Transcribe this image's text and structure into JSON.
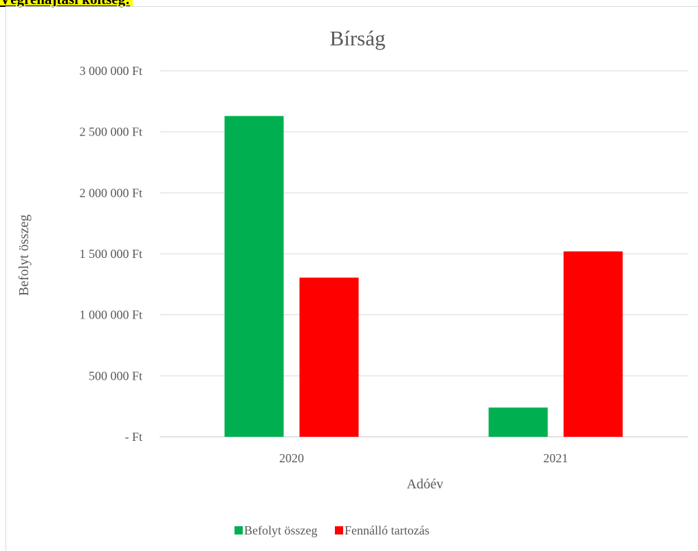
{
  "heading": "Végrehajtási költség:",
  "chart_data": {
    "type": "bar",
    "title": "Bírság",
    "xlabel": "Adóév",
    "ylabel": "Befolyt összeg",
    "categories": [
      "2020",
      "2021"
    ],
    "series": [
      {
        "name": "Befolyt összeg",
        "color": "#00b050",
        "values": [
          2630000,
          240000
        ]
      },
      {
        "name": "Fennálló tartozás",
        "color": "#ff0000",
        "values": [
          1305000,
          1520000
        ]
      }
    ],
    "ylim": [
      0,
      3000000
    ],
    "yticks": [
      0,
      500000,
      1000000,
      1500000,
      2000000,
      2500000,
      3000000
    ],
    "ytick_labels": [
      "-   Ft",
      "500 000 Ft",
      "1 000 000 Ft",
      "1 500 000 Ft",
      "2 000 000 Ft",
      "2 500 000 Ft",
      "3 000 000 Ft"
    ],
    "grid": true,
    "legend_position": "bottom"
  }
}
